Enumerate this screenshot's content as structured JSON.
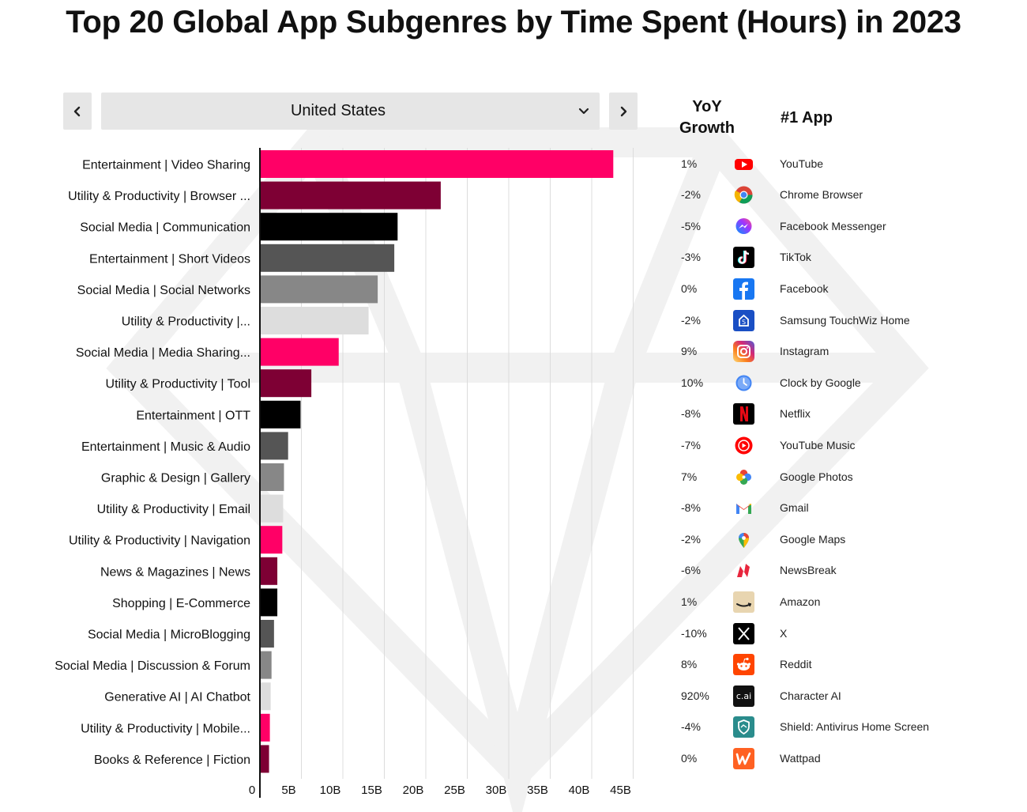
{
  "title": "Top 20 Global App Subgenres by Time Spent (Hours) in 2023",
  "selector": {
    "value": "United States",
    "prev_icon": "chevron-left-icon",
    "next_icon": "chevron-right-icon",
    "dropdown_icon": "chevron-down-icon"
  },
  "columns": {
    "yoy_line1": "YoY",
    "yoy_line2": "Growth",
    "top_app": "#1 App"
  },
  "colors": {
    "pink": "#ff0066",
    "maroon": "#7e0034",
    "black": "#000000",
    "dark_gray": "#555555",
    "mid_gray": "#878787",
    "light_gray": "#dddddd"
  },
  "chart_data": {
    "type": "bar",
    "orientation": "horizontal",
    "title": "Top 20 Global App Subgenres by Time Spent (Hours) in 2023",
    "xlim": [
      0,
      45
    ],
    "x_unit": "B hours",
    "x_ticks": [
      "0",
      "5B",
      "10B",
      "15B",
      "20B",
      "25B",
      "30B",
      "35B",
      "40B",
      "45B"
    ],
    "grid": "vertical",
    "categories": [
      "Entertainment | Video Sharing",
      "Utility & Productivity | Browser ...",
      "Social Media | Communication",
      "Entertainment | Short Videos",
      "Social Media | Social Networks",
      "Utility & Productivity |...",
      "Social Media | Media Sharing...",
      "Utility & Productivity | Tool",
      "Entertainment | OTT",
      "Entertainment | Music & Audio",
      "Graphic & Design | Gallery",
      "Utility & Productivity | Email",
      "Utility & Productivity | Navigation",
      "News & Magazines | News",
      "Shopping | E-Commerce",
      "Social Media | MicroBlogging",
      "Social Media | Discussion & Forum",
      "Generative AI | AI Chatbot",
      "Utility & Productivity | Mobile...",
      "Books & Reference | Fiction"
    ],
    "values": [
      42.6,
      21.8,
      16.6,
      16.2,
      14.2,
      13.1,
      9.5,
      6.2,
      4.9,
      3.4,
      2.9,
      2.8,
      2.7,
      2.1,
      2.1,
      1.7,
      1.4,
      1.3,
      1.2,
      1.1
    ],
    "bar_colors": [
      "pink",
      "maroon",
      "black",
      "dark_gray",
      "mid_gray",
      "light_gray",
      "pink",
      "maroon",
      "black",
      "dark_gray",
      "mid_gray",
      "light_gray",
      "pink",
      "maroon",
      "black",
      "dark_gray",
      "mid_gray",
      "light_gray",
      "pink",
      "maroon"
    ]
  },
  "rows": [
    {
      "growth": "1%",
      "app": "YouTube",
      "icon": "youtube-icon"
    },
    {
      "growth": "-2%",
      "app": "Chrome Browser",
      "icon": "chrome-icon"
    },
    {
      "growth": "-5%",
      "app": "Facebook Messenger",
      "icon": "messenger-icon"
    },
    {
      "growth": "-3%",
      "app": "TikTok",
      "icon": "tiktok-icon"
    },
    {
      "growth": "0%",
      "app": "Facebook",
      "icon": "facebook-icon"
    },
    {
      "growth": "-2%",
      "app": "Samsung TouchWiz Home",
      "icon": "samsung-touchwiz-icon"
    },
    {
      "growth": "9%",
      "app": "Instagram",
      "icon": "instagram-icon"
    },
    {
      "growth": "10%",
      "app": "Clock by Google",
      "icon": "clock-icon"
    },
    {
      "growth": "-8%",
      "app": "Netflix",
      "icon": "netflix-icon"
    },
    {
      "growth": "-7%",
      "app": "YouTube Music",
      "icon": "youtube-music-icon"
    },
    {
      "growth": "7%",
      "app": "Google Photos",
      "icon": "google-photos-icon"
    },
    {
      "growth": "-8%",
      "app": "Gmail",
      "icon": "gmail-icon"
    },
    {
      "growth": "-2%",
      "app": "Google Maps",
      "icon": "google-maps-icon"
    },
    {
      "growth": "-6%",
      "app": "NewsBreak",
      "icon": "newsbreak-icon"
    },
    {
      "growth": "1%",
      "app": "Amazon",
      "icon": "amazon-icon"
    },
    {
      "growth": "-10%",
      "app": "X",
      "icon": "x-icon"
    },
    {
      "growth": "8%",
      "app": "Reddit",
      "icon": "reddit-icon"
    },
    {
      "growth": "920%",
      "app": "Character AI",
      "icon": "character-ai-icon",
      "icon_text": "c.ai"
    },
    {
      "growth": "-4%",
      "app": "Shield: Antivirus Home Screen",
      "icon": "shield-antivirus-icon"
    },
    {
      "growth": "0%",
      "app": "Wattpad",
      "icon": "wattpad-icon"
    }
  ]
}
